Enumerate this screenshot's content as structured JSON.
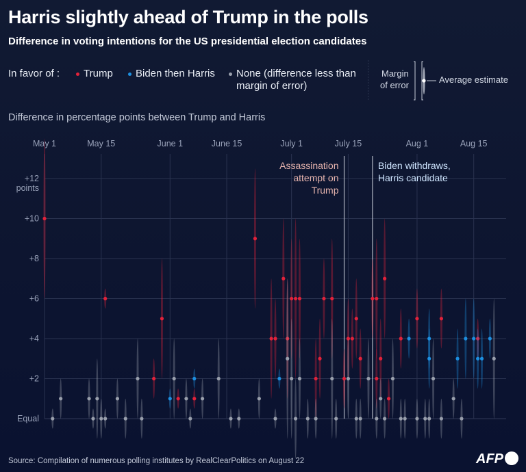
{
  "header": {
    "title": "Harris slightly ahead of Trump in the polls",
    "subtitle": "Difference in voting intentions for the US presidential election candidates"
  },
  "legend": {
    "intro": "In favor of :",
    "trump": "Trump",
    "biden_harris": "Biden then Harris",
    "none": "None (difference less than",
    "none_line2": "margin of error)",
    "moe_label_1": "Margin",
    "moe_label_2": "of error",
    "avg_label": "Average estimate"
  },
  "axis_title": "Difference in percentage points between Trump and Harris",
  "source": "Source: Compilation of numerous polling institutes by RealClearPolitics on August 22",
  "logo": "AFP",
  "colors": {
    "trump": "#e3223a",
    "harris": "#1d8fe0",
    "none": "#9aa0ad",
    "grid": "#2a3350",
    "event_line": "#c9ced9",
    "assassination_text": "#e6b4ae",
    "withdraw_text": "#cfe6ff"
  },
  "chart_data": {
    "type": "scatter",
    "x_type": "date",
    "xlim": [
      "2024-05-01",
      "2024-08-23"
    ],
    "ylim": [
      0,
      12
    ],
    "x_ticks": [
      {
        "date": "2024-05-01",
        "label": "May 1"
      },
      {
        "date": "2024-05-15",
        "label": "May 15"
      },
      {
        "date": "2024-06-01",
        "label": "June 1"
      },
      {
        "date": "2024-06-15",
        "label": "June 15"
      },
      {
        "date": "2024-07-01",
        "label": "July 1"
      },
      {
        "date": "2024-07-15",
        "label": "July 15"
      },
      {
        "date": "2024-08-01",
        "label": "Aug 1"
      },
      {
        "date": "2024-08-15",
        "label": "Aug 15"
      }
    ],
    "y_ticks": [
      {
        "value": 0,
        "label": "Equal"
      },
      {
        "value": 2,
        "label": "+2"
      },
      {
        "value": 4,
        "label": "+4"
      },
      {
        "value": 6,
        "label": "+6"
      },
      {
        "value": 8,
        "label": "+8"
      },
      {
        "value": 10,
        "label": "+10"
      },
      {
        "value": 12,
        "label": "+12"
      }
    ],
    "y_unit_label": "points",
    "events": [
      {
        "date": "2024-07-14",
        "label": [
          "Assassination",
          "attempt on",
          "Trump"
        ],
        "align": "end",
        "color_key": "assassination_text"
      },
      {
        "date": "2024-07-21",
        "label": [
          "Biden withdraws,",
          "Harris candidate"
        ],
        "align": "start",
        "color_key": "withdraw_text"
      }
    ],
    "series": [
      {
        "name": "Trump",
        "color_key": "trump",
        "points": [
          {
            "x": "2024-05-01",
            "y": 10,
            "moe": 4
          },
          {
            "x": "2024-05-16",
            "y": 6,
            "moe": 0.5
          },
          {
            "x": "2024-05-28",
            "y": 2,
            "moe": 1
          },
          {
            "x": "2024-05-30",
            "y": 5,
            "moe": 3
          },
          {
            "x": "2024-06-03",
            "y": 1,
            "moe": 0.5
          },
          {
            "x": "2024-06-07",
            "y": 1,
            "moe": 0.5
          },
          {
            "x": "2024-06-22",
            "y": 9,
            "moe": 3.5
          },
          {
            "x": "2024-06-26",
            "y": 4,
            "moe": 3
          },
          {
            "x": "2024-06-27",
            "y": 4,
            "moe": 2
          },
          {
            "x": "2024-06-29",
            "y": 7,
            "moe": 3
          },
          {
            "x": "2024-06-30",
            "y": 4,
            "moe": 3
          },
          {
            "x": "2024-07-01",
            "y": 6,
            "moe": 3
          },
          {
            "x": "2024-07-02",
            "y": 6,
            "moe": 4
          },
          {
            "x": "2024-07-03",
            "y": 6,
            "moe": 3
          },
          {
            "x": "2024-07-07",
            "y": 2,
            "moe": 2
          },
          {
            "x": "2024-07-08",
            "y": 3,
            "moe": 2
          },
          {
            "x": "2024-07-09",
            "y": 6,
            "moe": 2
          },
          {
            "x": "2024-07-11",
            "y": 6,
            "moe": 3
          },
          {
            "x": "2024-07-14",
            "y": 2,
            "moe": 1.5
          },
          {
            "x": "2024-07-15",
            "y": 4,
            "moe": 2
          },
          {
            "x": "2024-07-16",
            "y": 4,
            "moe": 1.5
          },
          {
            "x": "2024-07-17",
            "y": 5,
            "moe": 2
          },
          {
            "x": "2024-07-18",
            "y": 3,
            "moe": 1.5
          },
          {
            "x": "2024-07-21",
            "y": 6,
            "moe": 2
          },
          {
            "x": "2024-07-22",
            "y": 6,
            "moe": 3
          },
          {
            "x": "2024-07-22",
            "y": 2,
            "moe": 1.5
          },
          {
            "x": "2024-07-23",
            "y": 3,
            "moe": 2
          },
          {
            "x": "2024-07-24",
            "y": 7,
            "moe": 3
          },
          {
            "x": "2024-07-25",
            "y": 1,
            "moe": 1
          },
          {
            "x": "2024-07-28",
            "y": 4,
            "moe": 1.5
          },
          {
            "x": "2024-08-01",
            "y": 5,
            "moe": 1.5
          },
          {
            "x": "2024-08-07",
            "y": 5,
            "moe": 1.5
          },
          {
            "x": "2024-08-16",
            "y": 4,
            "moe": 1
          }
        ]
      },
      {
        "name": "Biden then Harris",
        "color_key": "harris",
        "points": [
          {
            "x": "2024-06-01",
            "y": 1,
            "moe": 0.5
          },
          {
            "x": "2024-06-07",
            "y": 2,
            "moe": 0.5
          },
          {
            "x": "2024-06-28",
            "y": 2,
            "moe": 0.5
          },
          {
            "x": "2024-07-30",
            "y": 4,
            "moe": 1
          },
          {
            "x": "2024-08-04",
            "y": 4,
            "moe": 1.5
          },
          {
            "x": "2024-08-04",
            "y": 3,
            "moe": 1.5
          },
          {
            "x": "2024-08-11",
            "y": 3,
            "moe": 1.5
          },
          {
            "x": "2024-08-13",
            "y": 4,
            "moe": 2
          },
          {
            "x": "2024-08-15",
            "y": 4,
            "moe": 2
          },
          {
            "x": "2024-08-16",
            "y": 3,
            "moe": 1.5
          },
          {
            "x": "2024-08-17",
            "y": 3,
            "moe": 1.5
          },
          {
            "x": "2024-08-19",
            "y": 4,
            "moe": 1
          }
        ]
      },
      {
        "name": "None",
        "color_key": "none",
        "points": [
          {
            "x": "2024-05-03",
            "y": 0,
            "moe": 0.5
          },
          {
            "x": "2024-05-05",
            "y": 1,
            "moe": 1
          },
          {
            "x": "2024-05-12",
            "y": 1,
            "moe": 1
          },
          {
            "x": "2024-05-13",
            "y": 0,
            "moe": 0.5
          },
          {
            "x": "2024-05-14",
            "y": 1,
            "moe": 2
          },
          {
            "x": "2024-05-15",
            "y": 0,
            "moe": 1
          },
          {
            "x": "2024-05-16",
            "y": 0,
            "moe": 0.5
          },
          {
            "x": "2024-05-19",
            "y": 1,
            "moe": 1
          },
          {
            "x": "2024-05-21",
            "y": 0,
            "moe": 1
          },
          {
            "x": "2024-05-24",
            "y": 2,
            "moe": 2
          },
          {
            "x": "2024-05-25",
            "y": 0,
            "moe": 1
          },
          {
            "x": "2024-06-02",
            "y": 2,
            "moe": 2
          },
          {
            "x": "2024-06-05",
            "y": 1,
            "moe": 1
          },
          {
            "x": "2024-06-06",
            "y": 0,
            "moe": 0.5
          },
          {
            "x": "2024-06-09",
            "y": 1,
            "moe": 1
          },
          {
            "x": "2024-06-13",
            "y": 2,
            "moe": 2
          },
          {
            "x": "2024-06-16",
            "y": 0,
            "moe": 0.5
          },
          {
            "x": "2024-06-18",
            "y": 0,
            "moe": 0.5
          },
          {
            "x": "2024-06-23",
            "y": 1,
            "moe": 1
          },
          {
            "x": "2024-06-27",
            "y": 0,
            "moe": 0.5
          },
          {
            "x": "2024-06-30",
            "y": 3,
            "moe": 4
          },
          {
            "x": "2024-07-01",
            "y": 2,
            "moe": 3
          },
          {
            "x": "2024-07-02",
            "y": 0,
            "moe": 2
          },
          {
            "x": "2024-07-03",
            "y": 2,
            "moe": 2
          },
          {
            "x": "2024-07-05",
            "y": 0,
            "moe": 1
          },
          {
            "x": "2024-07-07",
            "y": 0,
            "moe": 1
          },
          {
            "x": "2024-07-11",
            "y": 2,
            "moe": 3
          },
          {
            "x": "2024-07-12",
            "y": 0,
            "moe": 1
          },
          {
            "x": "2024-07-15",
            "y": 2,
            "moe": 2
          },
          {
            "x": "2024-07-17",
            "y": 0,
            "moe": 1
          },
          {
            "x": "2024-07-18",
            "y": 0,
            "moe": 1
          },
          {
            "x": "2024-07-20",
            "y": 2,
            "moe": 2
          },
          {
            "x": "2024-07-22",
            "y": 0,
            "moe": 1
          },
          {
            "x": "2024-07-23",
            "y": 1,
            "moe": 1
          },
          {
            "x": "2024-07-24",
            "y": 0,
            "moe": 1
          },
          {
            "x": "2024-07-26",
            "y": 2,
            "moe": 2
          },
          {
            "x": "2024-07-28",
            "y": 0,
            "moe": 1
          },
          {
            "x": "2024-07-29",
            "y": 0,
            "moe": 1
          },
          {
            "x": "2024-08-01",
            "y": 0,
            "moe": 1
          },
          {
            "x": "2024-08-03",
            "y": 0,
            "moe": 1
          },
          {
            "x": "2024-08-04",
            "y": 0,
            "moe": 1
          },
          {
            "x": "2024-08-05",
            "y": 2,
            "moe": 2
          },
          {
            "x": "2024-08-07",
            "y": 0,
            "moe": 1
          },
          {
            "x": "2024-08-10",
            "y": 1,
            "moe": 1
          },
          {
            "x": "2024-08-12",
            "y": 0,
            "moe": 1
          },
          {
            "x": "2024-08-20",
            "y": 3,
            "moe": 3
          }
        ]
      }
    ]
  }
}
